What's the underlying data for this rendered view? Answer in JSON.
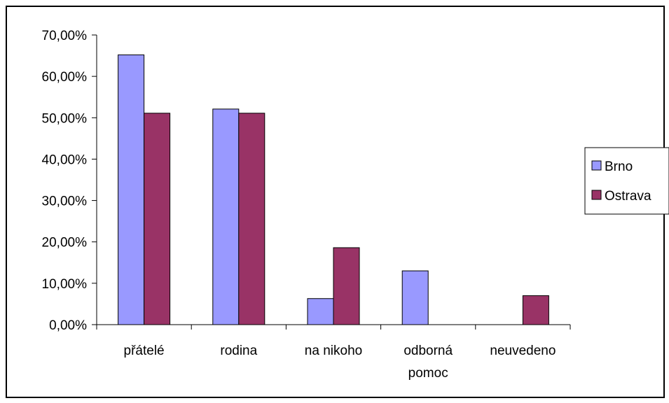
{
  "chart_data": {
    "type": "bar",
    "categories": [
      [
        "přátelé"
      ],
      [
        "rodina"
      ],
      [
        "na nikoho"
      ],
      [
        "odborná",
        "pomoc"
      ],
      [
        "neuvedeno"
      ]
    ],
    "series": [
      {
        "name": "Brno",
        "color": "#9999ff",
        "values": [
          65.2,
          52.1,
          6.3,
          13.0,
          0.0
        ]
      },
      {
        "name": "Ostrava",
        "color": "#993366",
        "values": [
          51.1,
          51.1,
          18.6,
          0.0,
          7.0
        ]
      }
    ],
    "ylim": [
      0,
      70
    ],
    "yticks": [
      0,
      10,
      20,
      30,
      40,
      50,
      60,
      70
    ],
    "ytick_labels": [
      "0,00%",
      "10,00%",
      "20,00%",
      "30,00%",
      "40,00%",
      "50,00%",
      "60,00%",
      "70,00%"
    ],
    "legend_position": "right",
    "grid": false
  }
}
